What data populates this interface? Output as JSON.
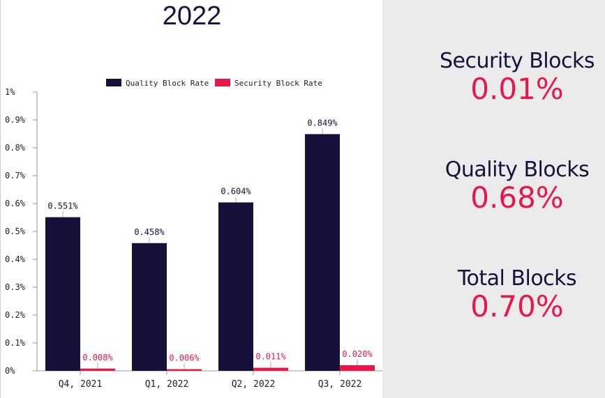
{
  "chart_data": {
    "type": "bar",
    "title": "2022",
    "categories": [
      "Q4, 2021",
      "Q1, 2022",
      "Q2, 2022",
      "Q3, 2022"
    ],
    "series": [
      {
        "name": "Quality Block Rate",
        "color": "#16113a",
        "values": [
          0.551,
          0.458,
          0.604,
          0.849
        ],
        "labels": [
          "0.551%",
          "0.458%",
          "0.604%",
          "0.849%"
        ]
      },
      {
        "name": "Security Block Rate",
        "color": "#e8174a",
        "values": [
          0.008,
          0.006,
          0.011,
          0.02
        ],
        "labels": [
          "0.008%",
          "0.006%",
          "0.011%",
          "0.020%"
        ]
      }
    ],
    "ylim": [
      0,
      1
    ],
    "yticks": [
      0,
      0.1,
      0.2,
      0.3,
      0.4,
      0.5,
      0.6,
      0.7,
      0.8,
      0.9,
      1
    ],
    "ytick_labels": [
      "0%",
      "0.1%",
      "0.2%",
      "0.3%",
      "0.4%",
      "0.5%",
      "0.6%",
      "0.7%",
      "0.8%",
      "0.9%",
      "1%"
    ],
    "legend_position": "top",
    "grid": false
  },
  "stats": [
    {
      "label": "Security Blocks",
      "value": "0.01%"
    },
    {
      "label": "Quality Blocks",
      "value": "0.68%"
    },
    {
      "label": "Total Blocks",
      "value": "0.70%"
    }
  ],
  "colors": {
    "accent": "#e8174a",
    "primary": "#16113a",
    "panel": "#ebebeb"
  }
}
